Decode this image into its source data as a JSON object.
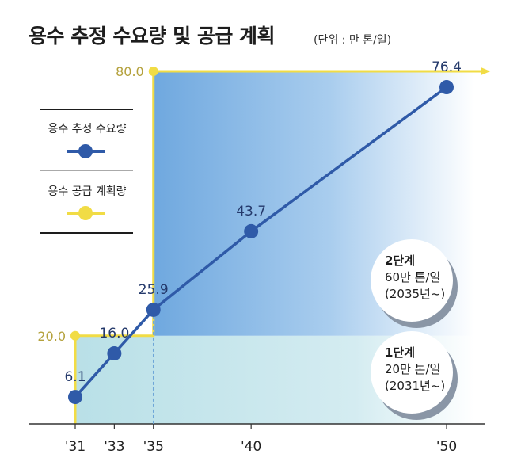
{
  "title": "용수 추정 수요량 및 공급 계획",
  "unit": "(단위 : 만 톤/일)",
  "legend": {
    "demand": "용수 추정 수요량",
    "supply": "용수 공급 계획량"
  },
  "badges": [
    {
      "title": "2단계",
      "line1": "60만 톤/일",
      "line2": "(2035년~)"
    },
    {
      "title": "1단계",
      "line1": "20만 톤/일",
      "line2": "(2031년~)"
    }
  ],
  "colors": {
    "demand": "#2f5aa8",
    "supply": "#f1dc45",
    "supply_label": "#b4a13c",
    "area_stage2_dark": "#7fb7e6",
    "area_stage1": "#c2e4ea"
  },
  "chart_data": {
    "type": "line",
    "x_tick_labels": [
      "'31",
      "'33",
      "'35",
      "'40",
      "'50"
    ],
    "xlim": [
      2030,
      2052
    ],
    "ylim": [
      0,
      85
    ],
    "series": [
      {
        "name": "용수 추정 수요량",
        "x": [
          2031,
          2033,
          2035,
          2040,
          2050
        ],
        "y": [
          6.1,
          16.0,
          25.9,
          43.7,
          76.4
        ],
        "labels": [
          "6.1",
          "16.0",
          "25.9",
          "43.7",
          "76.4"
        ]
      },
      {
        "name": "용수 공급 계획량",
        "type": "step",
        "x": [
          2031,
          2035,
          2052
        ],
        "y": [
          20.0,
          80.0,
          80.0
        ],
        "labels": [
          "20.0",
          "80.0"
        ]
      }
    ]
  }
}
